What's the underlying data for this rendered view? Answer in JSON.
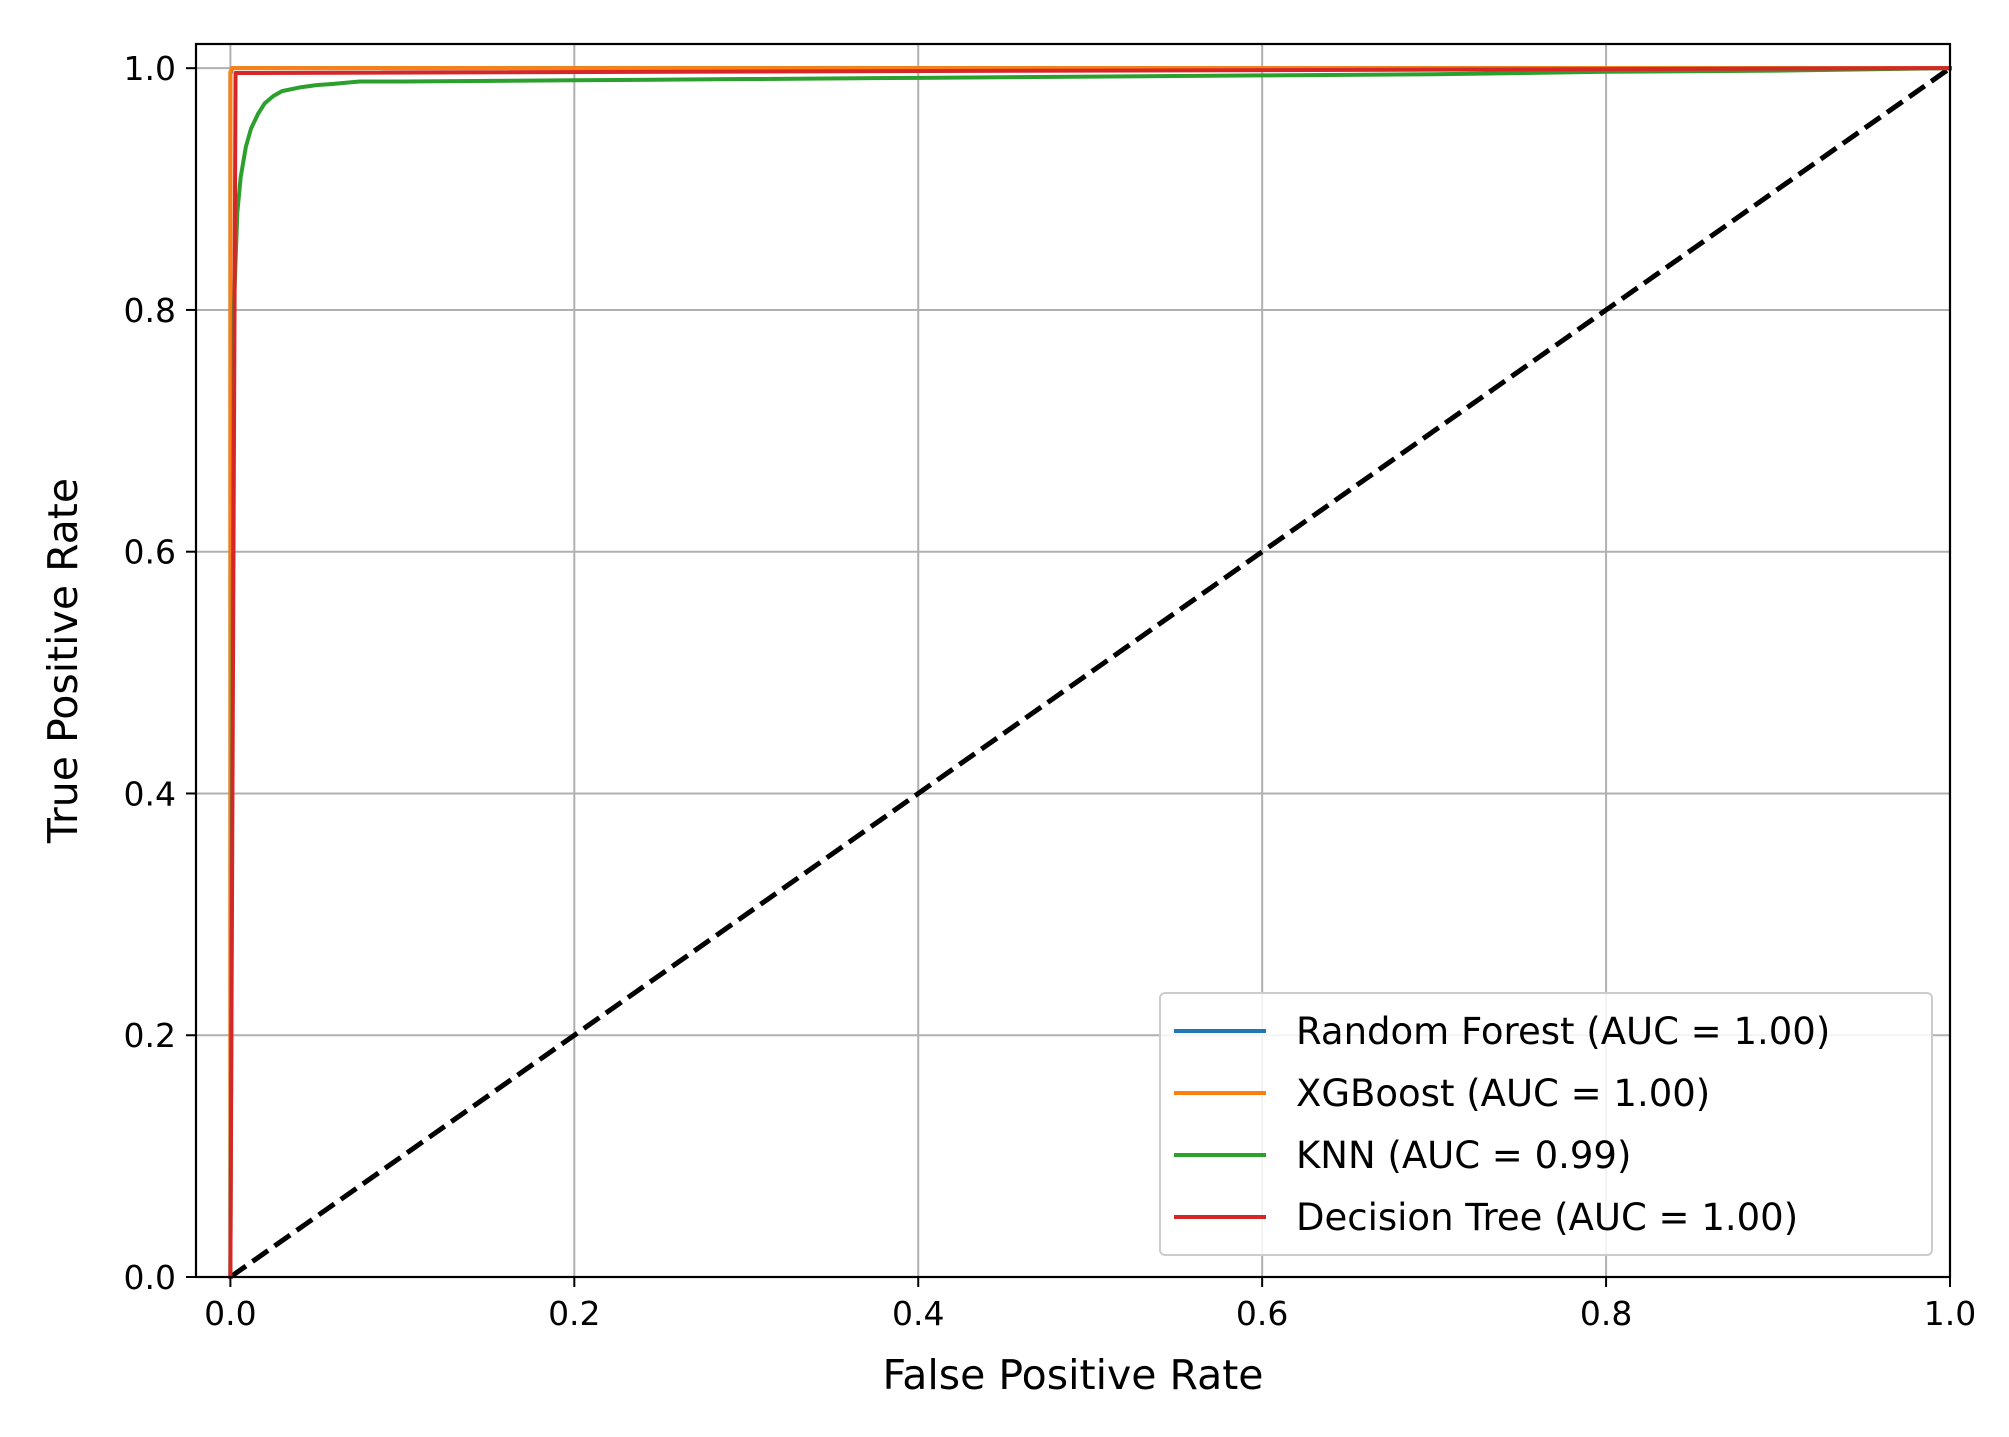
{
  "chart_data": {
    "type": "line",
    "xlabel": "False Positive Rate",
    "ylabel": "True Positive Rate",
    "xlim": [
      -0.02,
      1.0
    ],
    "ylim": [
      0.0,
      1.02
    ],
    "grid": true,
    "legend_position": "lower-right",
    "xticks": [
      0.0,
      0.2,
      0.4,
      0.6,
      0.8,
      1.0
    ],
    "yticks": [
      0.0,
      0.2,
      0.4,
      0.6,
      0.8,
      1.0
    ],
    "xtick_labels": [
      "0.0",
      "0.2",
      "0.4",
      "0.6",
      "0.8",
      "1.0"
    ],
    "ytick_labels": [
      "0.0",
      "0.2",
      "0.4",
      "0.6",
      "0.8",
      "1.0"
    ],
    "series": [
      {
        "name": "Random Forest (AUC = 1.00)",
        "color": "#1f77b4",
        "x": [
          0.0,
          0.0,
          0.001,
          1.0
        ],
        "y": [
          0.0,
          0.995,
          1.0,
          1.0
        ]
      },
      {
        "name": "XGBoost (AUC = 1.00)",
        "color": "#ff7f0e",
        "x": [
          0.0,
          0.0,
          0.001,
          1.0
        ],
        "y": [
          0.0,
          0.997,
          1.0,
          1.0
        ]
      },
      {
        "name": "KNN (AUC = 0.99)",
        "color": "#2ca02c",
        "x": [
          0.0,
          0.002,
          0.004,
          0.006,
          0.009,
          0.012,
          0.016,
          0.02,
          0.025,
          0.03,
          0.04,
          0.05,
          0.06,
          0.075,
          0.1,
          0.2,
          0.3,
          0.4,
          0.5,
          0.6,
          0.7,
          0.8,
          0.9,
          1.0
        ],
        "y": [
          0.0,
          0.8,
          0.88,
          0.91,
          0.935,
          0.95,
          0.962,
          0.971,
          0.977,
          0.981,
          0.984,
          0.986,
          0.987,
          0.989,
          0.989,
          0.99,
          0.991,
          0.992,
          0.993,
          0.994,
          0.995,
          0.997,
          0.998,
          1.0
        ]
      },
      {
        "name": "Decision Tree (AUC = 1.00)",
        "color": "#d62728",
        "x": [
          0.0,
          0.003,
          1.0
        ],
        "y": [
          0.0,
          0.996,
          1.0
        ]
      }
    ],
    "reference_line": {
      "x": [
        0.0,
        1.0
      ],
      "y": [
        0.0,
        1.0
      ],
      "color": "#000000",
      "style": "dashed"
    }
  }
}
